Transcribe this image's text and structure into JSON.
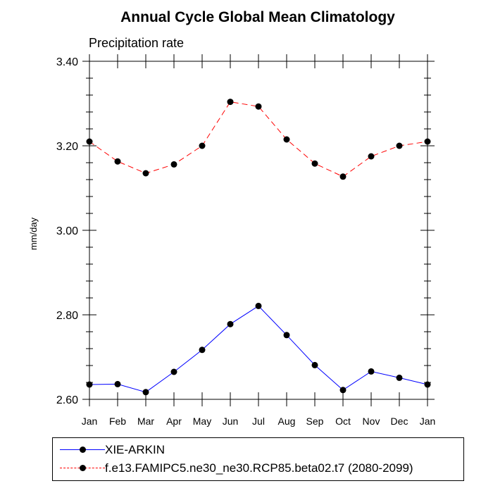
{
  "chart_data": {
    "type": "line",
    "title": "Annual Cycle Global Mean Climatology",
    "subtitle": "Precipitation rate",
    "xlabel": "",
    "ylabel": "mm/day",
    "categories": [
      "Jan",
      "Feb",
      "Mar",
      "Apr",
      "May",
      "Jun",
      "Jul",
      "Aug",
      "Sep",
      "Oct",
      "Nov",
      "Dec",
      "Jan"
    ],
    "ylim": [
      2.6,
      3.4
    ],
    "yticks": [
      "2.60",
      "2.80",
      "3.00",
      "3.20",
      "3.40"
    ],
    "grid": false,
    "legend_position": "bottom",
    "series": [
      {
        "name": "XIE-ARKIN",
        "color": "#0000ff",
        "dash": "solid",
        "values": [
          2.635,
          2.636,
          2.617,
          2.665,
          2.717,
          2.778,
          2.821,
          2.752,
          2.681,
          2.622,
          2.666,
          2.651,
          2.635
        ]
      },
      {
        "name": "f.e13.FAMIPC5.ne30_ne30.RCP85.beta02.t7 (2080-2099)",
        "color": "#ff0000",
        "dash": "dashed",
        "values": [
          3.21,
          3.163,
          3.135,
          3.156,
          3.2,
          3.304,
          3.293,
          3.215,
          3.158,
          3.127,
          3.175,
          3.2,
          3.21
        ]
      }
    ]
  }
}
